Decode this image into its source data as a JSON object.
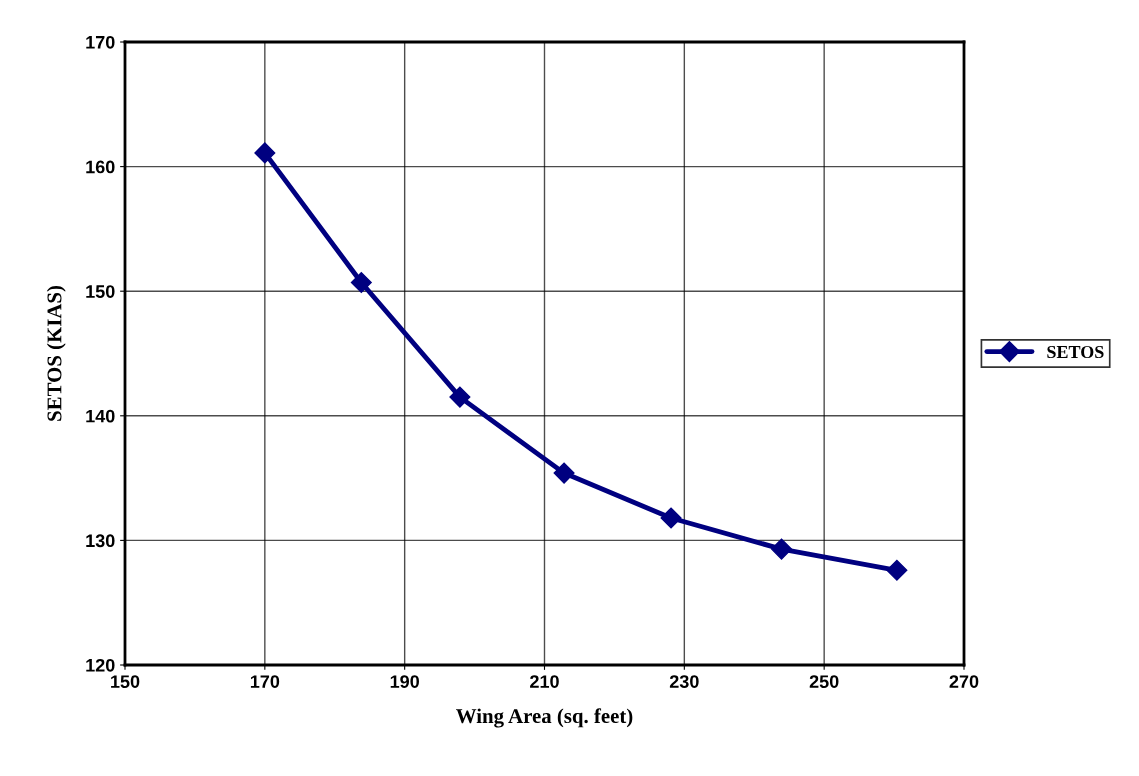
{
  "chart_data": {
    "type": "line",
    "xlabel": "Wing Area (sq. feet)",
    "ylabel": "SETOS (KIAS)",
    "x": [
      170,
      183.8,
      197.9,
      212.8,
      228.1,
      243.9,
      260.4
    ],
    "series": [
      {
        "name": "SETOS",
        "color": "#000080",
        "values": [
          161.1,
          150.7,
          141.5,
          135.4,
          131.8,
          129.3,
          127.6
        ]
      }
    ],
    "xlim": [
      150,
      270
    ],
    "xticks": [
      150,
      170,
      190,
      210,
      230,
      250,
      270
    ],
    "ylim": [
      120,
      170
    ],
    "yticks": [
      120,
      130,
      140,
      150,
      160,
      170
    ],
    "grid": true,
    "legend": "right",
    "marker": "diamond",
    "line_style": "solid"
  }
}
